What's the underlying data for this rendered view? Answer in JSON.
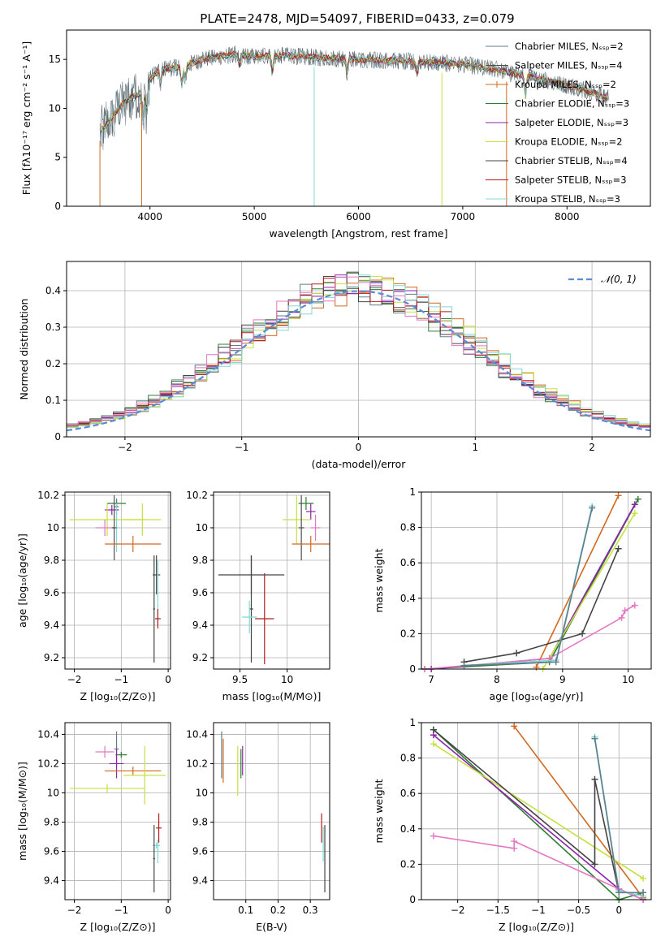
{
  "title": "PLATE=2478, MJD=54097, FIBERID=0433, z=0.079",
  "colors": {
    "chabrier_miles": "#607d8b",
    "salpeter_miles": "#4d4d4d",
    "kroupa_miles": "#d2691e",
    "chabrier_elodie": "#2e7d32",
    "salpeter_elodie": "#8e24aa",
    "kroupa_elodie": "#c6e040",
    "chabrier_stelib": "#444444",
    "salpeter_stelib": "#b71c1c",
    "kroupa_stelib": "#80d8d8",
    "pink": "#e377c2",
    "gauss": "#5b8bd6",
    "grid": "#b0b0b0"
  },
  "chart_data": [
    {
      "id": "spectrum",
      "type": "line",
      "xlabel": "wavelength [Angstrom, rest frame]",
      "ylabel": "Flux [fλ10⁻¹⁷ erg cm⁻² s⁻¹ A⁻¹]",
      "xlim": [
        3200,
        8800
      ],
      "ylim": [
        0,
        18
      ],
      "xticks": [
        4000,
        5000,
        6000,
        7000,
        8000
      ],
      "yticks": [
        0,
        5,
        10,
        15
      ],
      "grid": false,
      "legend_position": "right",
      "series": [
        {
          "name": "Chabrier MILES, N_SSP=2",
          "color": "chabrier_miles"
        },
        {
          "name": "Salpeter MILES, N_SSP=4",
          "color": "salpeter_miles"
        },
        {
          "name": "Kroupa MILES, N_SSP=2",
          "color": "kroupa_miles"
        },
        {
          "name": "Chabrier ELODIE, N_SSP=3",
          "color": "chabrier_elodie"
        },
        {
          "name": "Salpeter ELODIE, N_SSP=3",
          "color": "salpeter_elodie"
        },
        {
          "name": "Kroupa ELODIE, N_SSP=2",
          "color": "kroupa_elodie"
        },
        {
          "name": "Chabrier STELIB, N_SSP=4",
          "color": "chabrier_stelib"
        },
        {
          "name": "Salpeter STELIB, N_SSP=3",
          "color": "salpeter_stelib"
        },
        {
          "name": "Kroupa STELIB, N_SSP=3",
          "color": "kroupa_stelib"
        }
      ],
      "continuum": {
        "x": [
          3500,
          3600,
          3700,
          3800,
          3900,
          4000,
          4100,
          4300,
          4500,
          4800,
          5000,
          5300,
          5600,
          6000,
          6500,
          7000,
          7300,
          7600,
          7900,
          8200,
          8400
        ],
        "y": [
          7.5,
          8.5,
          10.0,
          11.0,
          11.5,
          13.0,
          14.0,
          14.2,
          15.0,
          15.5,
          15.3,
          15.4,
          15.2,
          15.0,
          14.8,
          14.5,
          14.0,
          13.3,
          12.6,
          11.8,
          11.0
        ]
      }
    },
    {
      "id": "residuals",
      "type": "histogram",
      "xlabel": "(data-model)/error",
      "ylabel": "Normed distribution",
      "xlim": [
        -2.5,
        2.5
      ],
      "ylim": [
        0,
        0.48
      ],
      "xticks": [
        -2,
        -1,
        0,
        1,
        2
      ],
      "yticks": [
        0.0,
        0.1,
        0.2,
        0.3,
        0.4
      ],
      "grid": true,
      "legend_position": "top-right",
      "legend": "𝒩(0, 1)",
      "bin_width": 0.1
    },
    {
      "id": "age_vs_Z",
      "type": "scatter",
      "xlabel": "Z [log₁₀(Z/Z⊙)]",
      "ylabel": "age  [log₁₀(age/yr)]",
      "xlim": [
        -2.2,
        0.05
      ],
      "ylim": [
        9.13,
        10.22
      ],
      "xticks": [
        -2,
        -1,
        0
      ],
      "yticks": [
        9.2,
        9.4,
        9.6,
        9.8,
        10.0,
        10.2
      ],
      "grid": true,
      "points": [
        {
          "x": -1.1,
          "y": 10.15,
          "xerr": 0.2,
          "yerr": 0.02,
          "c": "chabrier_elodie"
        },
        {
          "x": -1.1,
          "y": 10.13,
          "xerr": 0.05,
          "yerr": 0.05,
          "c": "chabrier_miles"
        },
        {
          "x": -1.2,
          "y": 10.11,
          "xerr": 0.15,
          "yerr": 0.03,
          "c": "salpeter_elodie"
        },
        {
          "x": -1.3,
          "y": 10.05,
          "xerr": 0.8,
          "yerr": 0.1,
          "c": "kroupa_elodie"
        },
        {
          "x": -0.55,
          "y": 10.05,
          "xerr": 0.4,
          "yerr": 0.1,
          "c": "kroupa_elodie"
        },
        {
          "x": -1.35,
          "y": 10.0,
          "xerr": 0.2,
          "yerr": 0.05,
          "c": "pink"
        },
        {
          "x": -1.1,
          "y": 10.0,
          "xerr": 0.08,
          "yerr": 0.15,
          "c": "kroupa_stelib"
        },
        {
          "x": -1.15,
          "y": 10.0,
          "xerr": 0.05,
          "yerr": 0.2,
          "c": "salpeter_miles"
        },
        {
          "x": -0.75,
          "y": 9.9,
          "xerr": 0.6,
          "yerr": 0.05,
          "c": "kroupa_miles"
        },
        {
          "x": -0.25,
          "y": 9.71,
          "xerr": 0.08,
          "yerr": 0.12,
          "c": "chabrier_stelib"
        },
        {
          "x": -0.3,
          "y": 9.5,
          "xerr": 0.02,
          "yerr": 0.33,
          "c": "chabrier_stelib"
        },
        {
          "x": -0.22,
          "y": 9.6,
          "xerr": 0.02,
          "yerr": 0.2,
          "c": "kroupa_stelib"
        },
        {
          "x": -0.22,
          "y": 9.44,
          "xerr": 0.06,
          "yerr": 0.06,
          "c": "salpeter_stelib"
        }
      ]
    },
    {
      "id": "age_vs_mass",
      "type": "scatter",
      "xlabel": "mass [log₁₀(M/M⊙)]",
      "ylabel": "",
      "xlim": [
        9.22,
        10.45
      ],
      "ylim": [
        9.13,
        10.22
      ],
      "xticks": [
        9.5,
        10.0
      ],
      "yticks": [
        9.2,
        9.4,
        9.6,
        9.8,
        10.0,
        10.2
      ],
      "grid": true,
      "points": [
        {
          "x": 10.2,
          "y": 10.15,
          "xerr": 0.08,
          "yerr": 0.04,
          "c": "chabrier_elodie"
        },
        {
          "x": 10.25,
          "y": 10.1,
          "xerr": 0.05,
          "yerr": 0.05,
          "c": "salpeter_elodie"
        },
        {
          "x": 10.1,
          "y": 10.05,
          "xerr": 0.15,
          "yerr": 0.15,
          "c": "kroupa_elodie"
        },
        {
          "x": 10.3,
          "y": 10.0,
          "xerr": 0.05,
          "yerr": 0.08,
          "c": "pink"
        },
        {
          "x": 10.15,
          "y": 10.0,
          "xerr": 0.03,
          "yerr": 0.2,
          "c": "salpeter_miles"
        },
        {
          "x": 10.25,
          "y": 9.9,
          "xerr": 0.2,
          "yerr": 0.05,
          "c": "kroupa_miles"
        },
        {
          "x": 9.62,
          "y": 9.71,
          "xerr": 0.35,
          "yerr": 0.12,
          "c": "chabrier_stelib"
        },
        {
          "x": 9.62,
          "y": 9.5,
          "xerr": 0.02,
          "yerr": 0.33,
          "c": "chabrier_stelib"
        },
        {
          "x": 9.6,
          "y": 9.45,
          "xerr": 0.08,
          "yerr": 0.1,
          "c": "kroupa_stelib"
        },
        {
          "x": 9.76,
          "y": 9.44,
          "xerr": 0.1,
          "yerr": 0.28,
          "c": "salpeter_stelib"
        }
      ]
    },
    {
      "id": "mass_weight_vs_age",
      "type": "line",
      "xlabel": "age  [log₁₀(age/yr)]",
      "ylabel": "mass weight",
      "xlim": [
        6.85,
        10.35
      ],
      "ylim": [
        0,
        1.0
      ],
      "xticks": [
        7,
        8,
        9,
        10
      ],
      "yticks": [
        0.0,
        0.2,
        0.4,
        0.6,
        0.8,
        1.0
      ],
      "grid": true,
      "series": [
        {
          "c": "kroupa_miles",
          "x": [
            8.6,
            9.85
          ],
          "y": [
            0.01,
            0.98
          ]
        },
        {
          "c": "chabrier_elodie",
          "x": [
            6.9,
            8.8,
            10.15
          ],
          "y": [
            0.0,
            0.04,
            0.96
          ]
        },
        {
          "c": "salpeter_elodie",
          "x": [
            7.0,
            8.8,
            10.1
          ],
          "y": [
            0.0,
            0.06,
            0.93
          ]
        },
        {
          "c": "kroupa_elodie",
          "x": [
            8.7,
            10.1
          ],
          "y": [
            0.0,
            0.88
          ]
        },
        {
          "c": "chabrier_stelib",
          "x": [
            7.5,
            8.3,
            9.3,
            9.85
          ],
          "y": [
            0.04,
            0.09,
            0.2,
            0.68
          ]
        },
        {
          "c": "pink",
          "x": [
            6.9,
            8.8,
            9.9,
            9.95,
            10.1
          ],
          "y": [
            0.0,
            0.06,
            0.29,
            0.33,
            0.36
          ]
        },
        {
          "c": "kroupa_stelib",
          "x": [
            7.5,
            8.9,
            9.45
          ],
          "y": [
            0.02,
            0.05,
            0.92
          ]
        },
        {
          "c": "chabrier_miles",
          "x": [
            7.5,
            8.9,
            9.45
          ],
          "y": [
            0.02,
            0.04,
            0.91
          ]
        }
      ]
    },
    {
      "id": "mass_vs_Z",
      "type": "scatter",
      "xlabel": "Z [log₁₀(Z/Z⊙)]",
      "ylabel": "mass [log₁₀(M/M⊙)]",
      "xlim": [
        -2.2,
        0.05
      ],
      "ylim": [
        9.27,
        10.48
      ],
      "xticks": [
        -2,
        -1,
        0
      ],
      "yticks": [
        9.4,
        9.6,
        9.8,
        10.0,
        10.2,
        10.4
      ],
      "grid": true,
      "points": [
        {
          "x": -1.0,
          "y": 10.26,
          "xerr": 0.12,
          "yerr": 0.02,
          "c": "chabrier_elodie"
        },
        {
          "x": -1.35,
          "y": 10.28,
          "xerr": 0.2,
          "yerr": 0.04,
          "c": "pink"
        },
        {
          "x": -1.1,
          "y": 10.3,
          "xerr": 0.05,
          "yerr": 0.12,
          "c": "chabrier_miles"
        },
        {
          "x": -1.1,
          "y": 10.2,
          "xerr": 0.15,
          "yerr": 0.1,
          "c": "salpeter_elodie"
        },
        {
          "x": -0.75,
          "y": 10.15,
          "xerr": 0.6,
          "yerr": 0.03,
          "c": "kroupa_miles"
        },
        {
          "x": -0.5,
          "y": 10.12,
          "xerr": 0.45,
          "yerr": 0.2,
          "c": "kroupa_elodie"
        },
        {
          "x": -1.3,
          "y": 10.03,
          "xerr": 0.8,
          "yerr": 0.03,
          "c": "kroupa_elodie"
        },
        {
          "x": -0.2,
          "y": 9.76,
          "xerr": 0.06,
          "yerr": 0.1,
          "c": "salpeter_stelib"
        },
        {
          "x": -0.25,
          "y": 9.64,
          "xerr": 0.08,
          "yerr": 0.02,
          "c": "kroupa_stelib"
        },
        {
          "x": -0.22,
          "y": 9.6,
          "xerr": 0.02,
          "yerr": 0.08,
          "c": "kroupa_stelib"
        },
        {
          "x": -0.3,
          "y": 9.55,
          "xerr": 0.02,
          "yerr": 0.23,
          "c": "chabrier_stelib"
        }
      ]
    },
    {
      "id": "mass_vs_ebv",
      "type": "scatter",
      "xlabel": "E(B-V)",
      "ylabel": "",
      "xlim": [
        0.0,
        0.36
      ],
      "ylim": [
        9.27,
        10.48
      ],
      "xticks": [
        0.1,
        0.2,
        0.3
      ],
      "yticks": [
        9.4,
        9.6,
        9.8,
        10.0,
        10.2,
        10.4
      ],
      "grid": true,
      "points": [
        {
          "x": 0.025,
          "y": 10.26,
          "xerr": 0.0,
          "yerr": 0.16,
          "c": "chabrier_miles"
        },
        {
          "x": 0.03,
          "y": 10.22,
          "xerr": 0.0,
          "yerr": 0.15,
          "c": "kroupa_miles"
        },
        {
          "x": 0.075,
          "y": 10.15,
          "xerr": 0.0,
          "yerr": 0.17,
          "c": "kroupa_elodie"
        },
        {
          "x": 0.085,
          "y": 10.2,
          "xerr": 0.0,
          "yerr": 0.1,
          "c": "chabrier_elodie"
        },
        {
          "x": 0.09,
          "y": 10.22,
          "xerr": 0.0,
          "yerr": 0.1,
          "c": "salpeter_elodie"
        },
        {
          "x": 0.335,
          "y": 9.76,
          "xerr": 0.0,
          "yerr": 0.1,
          "c": "salpeter_stelib"
        },
        {
          "x": 0.34,
          "y": 9.65,
          "xerr": 0.0,
          "yerr": 0.12,
          "c": "kroupa_stelib"
        },
        {
          "x": 0.345,
          "y": 9.55,
          "xerr": 0.0,
          "yerr": 0.23,
          "c": "chabrier_stelib"
        }
      ]
    },
    {
      "id": "mass_weight_vs_Z",
      "type": "line",
      "xlabel": "Z [log₁₀(Z/Z⊙)]",
      "ylabel": "mass weight",
      "xlim": [
        -2.45,
        0.4
      ],
      "ylim": [
        0,
        1.0
      ],
      "xticks": [
        -2.0,
        -1.5,
        -1.0,
        -0.5,
        0.0
      ],
      "yticks": [
        0.0,
        0.2,
        0.4,
        0.6,
        0.8,
        1.0
      ],
      "grid": true,
      "series": [
        {
          "c": "kroupa_miles",
          "x": [
            -1.3,
            0.3
          ],
          "y": [
            0.98,
            0.01
          ]
        },
        {
          "c": "chabrier_elodie",
          "x": [
            -2.3,
            0.0,
            0.3
          ],
          "y": [
            0.96,
            0.0,
            0.04
          ]
        },
        {
          "c": "salpeter_elodie",
          "x": [
            -2.3,
            0.0,
            0.3
          ],
          "y": [
            0.93,
            0.06,
            0.0
          ]
        },
        {
          "c": "kroupa_elodie",
          "x": [
            -2.3,
            0.3
          ],
          "y": [
            0.88,
            0.12
          ]
        },
        {
          "c": "chabrier_stelib",
          "x": [
            -2.3,
            -0.3,
            -0.3,
            0.0
          ],
          "y": [
            0.96,
            0.2,
            0.68,
            0.04
          ]
        },
        {
          "c": "pink",
          "x": [
            -2.3,
            -1.3,
            -1.3,
            0.0,
            0.3
          ],
          "y": [
            0.36,
            0.29,
            0.33,
            0.06,
            0.0
          ]
        },
        {
          "c": "kroupa_stelib",
          "x": [
            -0.3,
            0.0,
            0.3
          ],
          "y": [
            0.92,
            0.05,
            0.02
          ]
        },
        {
          "c": "chabrier_miles",
          "x": [
            -0.3,
            0.0,
            0.3
          ],
          "y": [
            0.91,
            0.04,
            0.04
          ]
        }
      ]
    }
  ]
}
